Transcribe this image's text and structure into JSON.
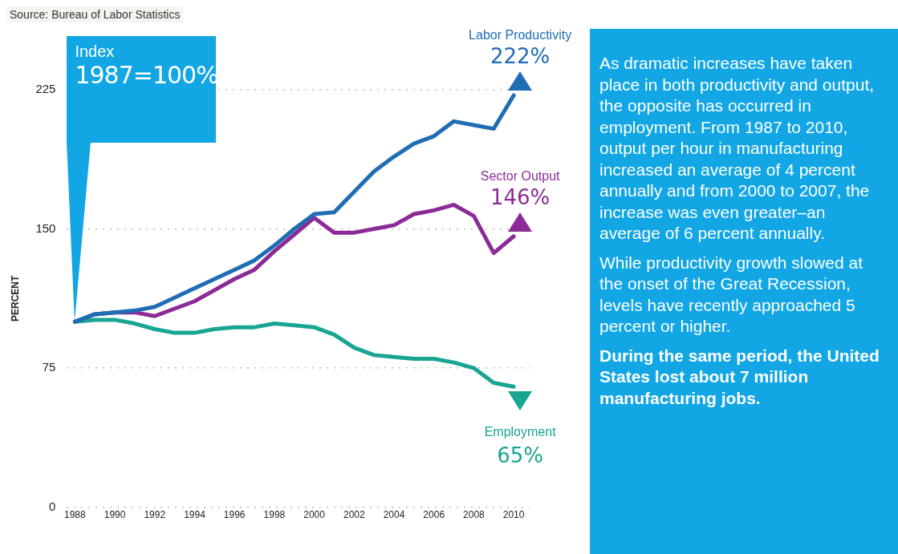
{
  "chart_data": {
    "type": "line",
    "ylabel": "PERCENT",
    "annotations": [
      "Source: Bureau of Labor Statistics",
      "Index",
      "1987=100%",
      "As dramatic increases have taken place in both productivity and output, the opposite has occurred in employment. From 1987 to 2010, output per hour in manufacturing increased an average of 4 percent annually and from 2000 to 2007, the increase was even greater–an average of 6 percent annually.",
      "While productivity growth slowed at the onset of the Great Recession, levels have recently approached 5 percent or higher.",
      "During the same period, the United States lost about 7 million manufacturing jobs."
    ],
    "x": [
      1988,
      1989,
      1990,
      1991,
      1992,
      1993,
      1994,
      1995,
      1996,
      1997,
      1998,
      1999,
      2000,
      2001,
      2002,
      2003,
      2004,
      2005,
      2006,
      2007,
      2008,
      2009,
      2010
    ],
    "xlim": [
      1987.6,
      2010.8
    ],
    "xticks": [
      1988,
      1990,
      1992,
      1994,
      1996,
      1998,
      2000,
      2002,
      2004,
      2006,
      2008,
      2010
    ],
    "ylim": [
      0,
      225
    ],
    "yticks": [
      0,
      75,
      150,
      225
    ],
    "grid": "y",
    "marker": "none",
    "line_style": "solid",
    "series": [
      {
        "name": "Labor Productivity",
        "color": "#1f6db3",
        "values": [
          100,
          104,
          105,
          106,
          108,
          113,
          118,
          123,
          128,
          133,
          141,
          150,
          158,
          159,
          170,
          181,
          189,
          196,
          200,
          208,
          206,
          204,
          222
        ],
        "value_labels": [
          null,
          null,
          null,
          null,
          null,
          null,
          null,
          null,
          null,
          null,
          null,
          null,
          null,
          null,
          null,
          null,
          null,
          null,
          null,
          null,
          null,
          null,
          "222%"
        ]
      },
      {
        "name": "Sector Output",
        "color": "#8b2b97",
        "values": [
          100,
          104,
          105,
          105,
          103,
          107,
          111,
          117,
          123,
          128,
          138,
          147,
          156,
          148,
          148,
          150,
          152,
          158,
          160,
          163,
          157,
          137,
          146
        ],
        "value_labels": [
          null,
          null,
          null,
          null,
          null,
          null,
          null,
          null,
          null,
          null,
          null,
          null,
          null,
          null,
          null,
          null,
          null,
          null,
          null,
          null,
          null,
          null,
          "146%"
        ]
      },
      {
        "name": "Employment",
        "color": "#1aa593",
        "values": [
          100,
          101,
          101,
          99,
          96,
          94,
          94,
          96,
          97,
          97,
          99,
          98,
          97,
          93,
          86,
          82,
          81,
          80,
          80,
          78,
          75,
          67,
          65
        ],
        "value_labels": [
          null,
          null,
          null,
          null,
          null,
          null,
          null,
          null,
          null,
          null,
          null,
          null,
          null,
          null,
          null,
          null,
          null,
          null,
          null,
          null,
          null,
          null,
          "65%"
        ]
      }
    ]
  }
}
